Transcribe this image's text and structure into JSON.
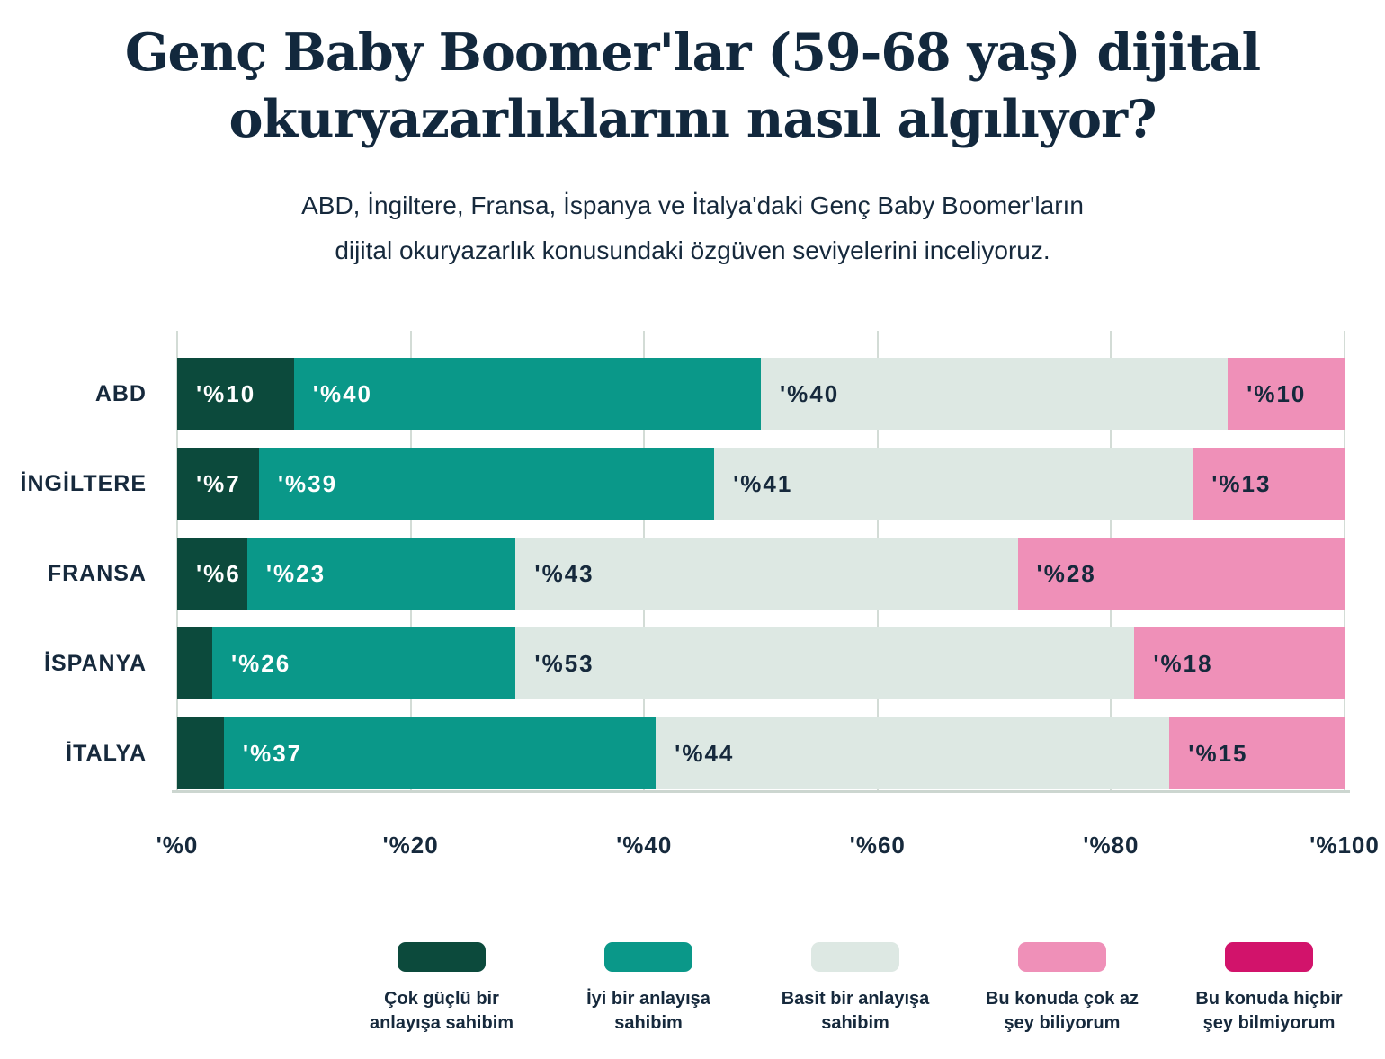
{
  "header": {
    "title_line1": "Genç Baby Boomer'lar (59-68 yaş) dijital",
    "title_line2": "okuryazarlıklarını nasıl algılıyor?",
    "subtitle_line1": "ABD, İngiltere, Fransa, İspanya ve İtalya'daki Genç Baby Boomer'ların",
    "subtitle_line2": "dijital okuryazarlık konusundaki özgüven seviyelerini inceliyoruz."
  },
  "colors": {
    "background": "#ffffff",
    "title_text": "#12283d",
    "body_text": "#16293c",
    "gridline": "#d3dcd6",
    "very_strong": "#0c4a3c",
    "good": "#0a9889",
    "basic": "#dde8e3",
    "little": "#ef90b8",
    "nothing": "#d2136b"
  },
  "chart_data": {
    "type": "bar",
    "variant": "horizontal-stacked-percent",
    "title": "Genç Baby Boomer'lar (59-68 yaş) dijital okuryazarlıklarını nasıl algılıyor?",
    "subtitle": "ABD, İngiltere, Fransa, İspanya ve İtalya'daki Genç Baby Boomer'ların dijital okuryazarlık konusundaki özgüven seviyelerini inceliyoruz.",
    "categories": [
      "ABD",
      "İNGİLTERE",
      "FRANSA",
      "İSPANYA",
      "İTALYA"
    ],
    "series": [
      {
        "name": "Çok güçlü bir anlayışa sahibim",
        "color": "#0c4a3c",
        "text_color": "#ffffff",
        "values": [
          10,
          7,
          6,
          3,
          4
        ],
        "labels": [
          "'%10",
          "'%7",
          "'%6",
          "",
          ""
        ]
      },
      {
        "name": "İyi bir anlayışa sahibim",
        "color": "#0a9889",
        "text_color": "#ffffff",
        "values": [
          40,
          39,
          23,
          26,
          37
        ],
        "labels": [
          "'%40",
          "'%39",
          "'%23",
          "'%26",
          "'%37"
        ]
      },
      {
        "name": "Basit bir anlayışa sahibim",
        "color": "#dde8e3",
        "text_color": "#16293c",
        "values": [
          40,
          41,
          43,
          53,
          44
        ],
        "labels": [
          "'%40",
          "'%41",
          "'%43",
          "'%53",
          "'%44"
        ]
      },
      {
        "name": "Bu konuda çok az şey biliyorum",
        "color": "#ef90b8",
        "text_color": "#16293c",
        "values": [
          10,
          13,
          28,
          18,
          15
        ],
        "labels": [
          "'%10",
          "'%13",
          "'%28",
          "'%18",
          "'%15"
        ]
      },
      {
        "name": "Bu konuda hiçbir şey bilmiyorum",
        "color": "#d2136b",
        "text_color": "#ffffff",
        "values": [
          0,
          0,
          0,
          0,
          0
        ],
        "labels": [
          "",
          "",
          "",
          "",
          ""
        ]
      }
    ],
    "x_ticks": [
      "'%0",
      "'%20",
      "'%40",
      "'%60",
      "'%80",
      "'%100"
    ],
    "xlim": [
      0,
      100
    ],
    "grid": true,
    "legend_position": "bottom"
  },
  "legend": {
    "items": [
      {
        "color": "#0c4a3c",
        "line1": "Çok güçlü bir",
        "line2": "anlayışa sahibim"
      },
      {
        "color": "#0a9889",
        "line1": "İyi bir anlayışa",
        "line2": "sahibim"
      },
      {
        "color": "#dde8e3",
        "line1": "Basit bir anlayışa",
        "line2": "sahibim"
      },
      {
        "color": "#ef90b8",
        "line1": "Bu konuda çok az",
        "line2": "şey biliyorum"
      },
      {
        "color": "#d2136b",
        "line1": "Bu konuda hiçbir",
        "line2": "şey bilmiyorum"
      }
    ]
  }
}
